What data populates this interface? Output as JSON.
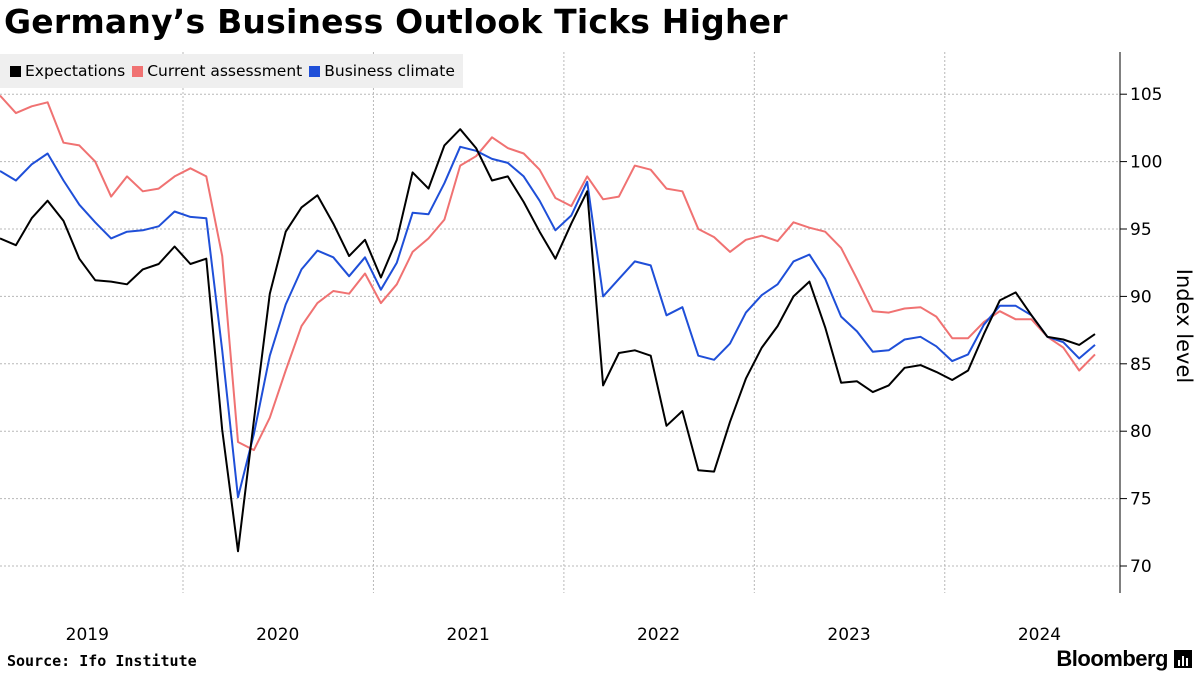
{
  "chart_data": {
    "type": "line",
    "title": "Germany’s Business Outlook Ticks Higher",
    "ylabel": "Index level",
    "xlabel": "",
    "ylim": [
      68,
      108
    ],
    "yticks": [
      70,
      75,
      80,
      85,
      90,
      95,
      100,
      105
    ],
    "x_start": "2019-01",
    "x_end": "2024-07",
    "x_labels": [
      "2019",
      "2020",
      "2021",
      "2022",
      "2023",
      "2024"
    ],
    "legend_position": "top-left",
    "grid": true,
    "series": [
      {
        "name": "Expectations",
        "color": "#000000",
        "values": [
          94.3,
          93.8,
          95.8,
          97.1,
          95.6,
          92.8,
          91.2,
          91.1,
          90.9,
          92.0,
          92.4,
          93.7,
          92.4,
          92.8,
          80.1,
          71.1,
          80.8,
          90.2,
          94.8,
          96.6,
          97.5,
          95.4,
          93.0,
          94.2,
          91.4,
          94.2,
          99.2,
          98.0,
          101.2,
          102.4,
          101.0,
          98.6,
          98.9,
          97.0,
          94.8,
          92.8,
          95.4,
          97.8,
          83.4,
          85.8,
          86.0,
          85.6,
          80.4,
          81.5,
          77.1,
          77.0,
          80.7,
          83.9,
          86.2,
          87.8,
          90.0,
          91.1,
          87.7,
          83.6,
          83.7,
          82.9,
          83.4,
          84.7,
          84.9,
          84.4,
          83.8,
          84.5,
          87.2,
          89.7,
          90.3,
          88.6,
          87.0,
          86.8,
          86.4,
          87.2
        ]
      },
      {
        "name": "Current assessment",
        "color": "#f07272",
        "values": [
          104.9,
          103.6,
          104.1,
          104.4,
          101.4,
          101.2,
          100.0,
          97.4,
          98.9,
          97.8,
          98.0,
          98.9,
          99.5,
          98.9,
          93.0,
          79.2,
          78.6,
          81.0,
          84.5,
          87.8,
          89.5,
          90.4,
          90.2,
          91.7,
          89.5,
          90.9,
          93.3,
          94.3,
          95.7,
          99.7,
          100.4,
          101.8,
          101.0,
          100.6,
          99.4,
          97.3,
          96.7,
          98.9,
          97.2,
          97.4,
          99.7,
          99.4,
          98.0,
          97.8,
          95.0,
          94.4,
          93.3,
          94.2,
          94.5,
          94.1,
          95.5,
          95.1,
          94.8,
          93.6,
          91.3,
          88.9,
          88.8,
          89.1,
          89.2,
          88.5,
          86.9,
          86.9,
          88.1,
          88.9,
          88.3,
          88.3,
          87.0,
          86.2,
          84.5,
          85.7
        ]
      },
      {
        "name": "Business climate",
        "color": "#1f4fd8",
        "values": [
          99.3,
          98.6,
          99.8,
          100.6,
          98.6,
          96.8,
          95.5,
          94.3,
          94.8,
          94.9,
          95.2,
          96.3,
          95.9,
          95.8,
          86.0,
          75.1,
          79.8,
          85.6,
          89.4,
          92.0,
          93.4,
          92.9,
          91.5,
          92.9,
          90.5,
          92.5,
          96.2,
          96.1,
          98.4,
          101.1,
          100.8,
          100.2,
          99.9,
          98.9,
          97.1,
          94.9,
          96.0,
          98.5,
          90.0,
          91.3,
          92.6,
          92.3,
          88.6,
          89.2,
          85.6,
          85.3,
          86.5,
          88.8,
          90.1,
          90.9,
          92.6,
          93.1,
          91.3,
          88.5,
          87.4,
          85.9,
          86.0,
          86.8,
          87.0,
          86.3,
          85.2,
          85.7,
          87.9,
          89.3,
          89.3,
          88.6,
          87.0,
          86.6,
          85.4,
          86.4
        ]
      }
    ]
  },
  "legend": {
    "items": [
      {
        "label": "Expectations",
        "color": "#000000"
      },
      {
        "label": "Current assessment",
        "color": "#f07272"
      },
      {
        "label": "Business climate",
        "color": "#1f4fd8"
      }
    ]
  },
  "footer": {
    "source": "Source: Ifo Institute",
    "brand": "Bloomberg"
  }
}
